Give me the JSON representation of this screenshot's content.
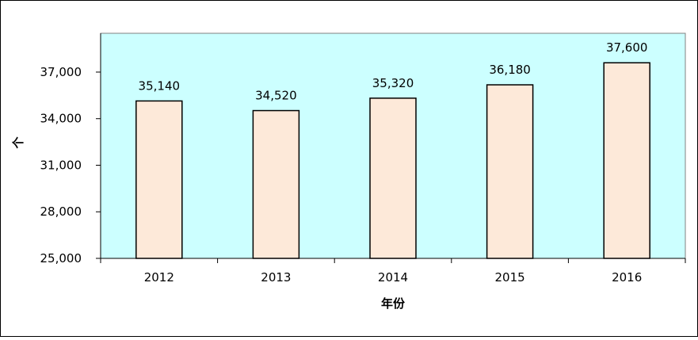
{
  "chart_data": {
    "type": "bar",
    "x_label": "年份",
    "y_label": "个",
    "categories": [
      "2012",
      "2013",
      "2014",
      "2015",
      "2016"
    ],
    "values": [
      35140,
      34520,
      35320,
      36180,
      37600
    ],
    "value_labels": [
      "35,140",
      "34,520",
      "35,320",
      "36,180",
      "37,600"
    ],
    "color": "#fde9d9",
    "background": "#ccffff",
    "ylim": [
      25000,
      39500
    ],
    "yticks": [
      {
        "value": 25000,
        "label": "25,000"
      },
      {
        "value": 28000,
        "label": "28,000"
      },
      {
        "value": 31000,
        "label": "31,000"
      },
      {
        "value": 34000,
        "label": "34,000"
      },
      {
        "value": 37000,
        "label": "37,000"
      }
    ],
    "grid": false
  }
}
